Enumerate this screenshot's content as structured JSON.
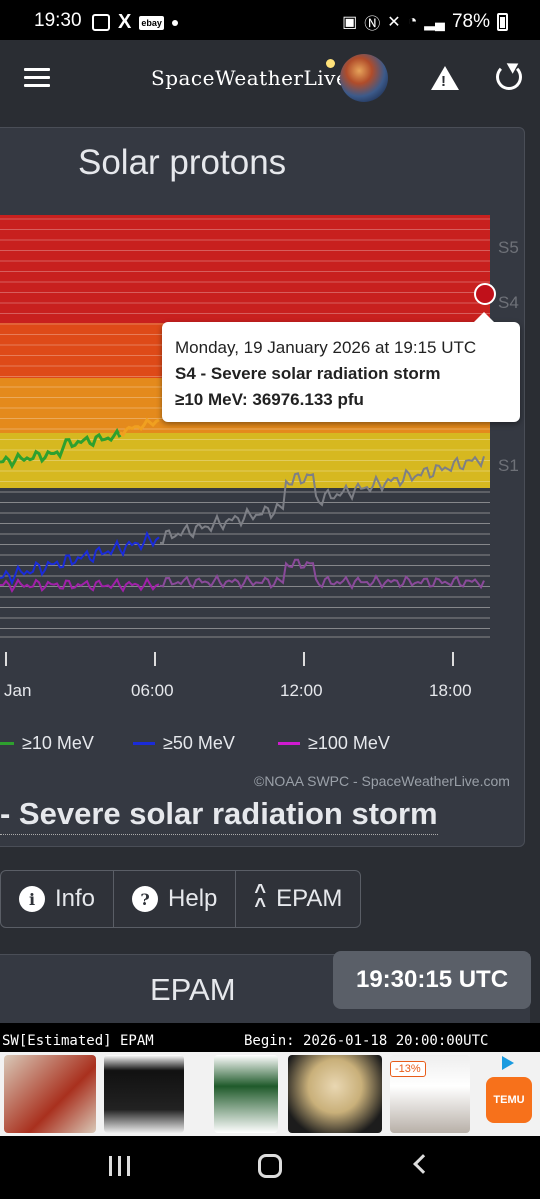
{
  "statusbar": {
    "time": "19:30",
    "battery": "78%"
  },
  "appbar": {
    "logo_text": "SpaceWeatherLive"
  },
  "card": {
    "title": "Solar protons"
  },
  "tooltip": {
    "date": "Monday, 19 January 2026 at 19:15 UTC",
    "level": "S4 - Severe solar radiation storm",
    "value": "≥10 MeV: 36976.133 pfu"
  },
  "legend": {
    "items": [
      {
        "label": "≥10 MeV",
        "color": "#2ea02e"
      },
      {
        "label": "≥50 MeV",
        "color": "#1a2bd8"
      },
      {
        "label": "≥100 MeV",
        "color": "#d01ad0"
      }
    ]
  },
  "credit": "©NOAA SWPC - SpaceWeatherLive.com",
  "heading": "- Severe solar radiation storm",
  "buttons": {
    "info": "Info",
    "help": "Help",
    "epam": "EPAM"
  },
  "epam": {
    "title": "EPAM",
    "clock": "19:30:15 UTC",
    "terminal_left": "SW[Estimated] EPAM",
    "terminal_right": "Begin: 2026-01-18 20:00:00UTC"
  },
  "ads": {
    "discount": "-13%",
    "brand": "TEMU"
  },
  "chart_data": {
    "type": "line",
    "x_tick_labels": [
      "Jan",
      "06:00",
      "12:00",
      "18:00"
    ],
    "y_level_labels": [
      "S5",
      "S4",
      "S1"
    ],
    "yscale": "log",
    "series": [
      {
        "name": "≥10 MeV",
        "color": "#2ea02e",
        "note_color_high": "#f0a020"
      },
      {
        "name": "≥50 MeV",
        "color": "#1a2bd8"
      },
      {
        "name": "≥100 MeV",
        "color": "#d01ad0"
      }
    ],
    "highlight_point": {
      "time": "19:15",
      "value": 36976.133
    }
  }
}
